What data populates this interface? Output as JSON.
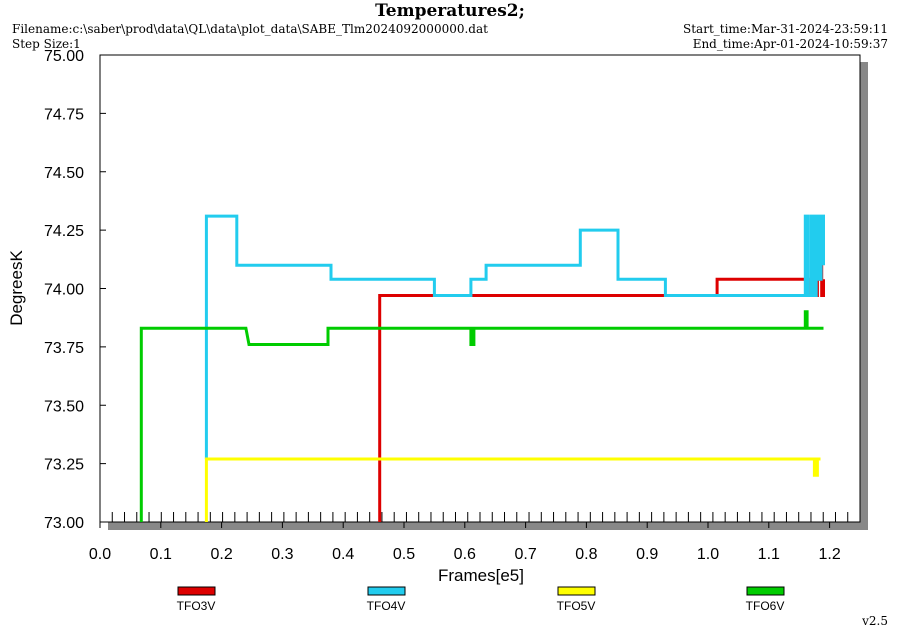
{
  "header": {
    "title": "Temperatures2;",
    "filename": "Filename:c:\\saber\\prod\\data\\QL\\data\\plot_data\\SABE_Tlm2024092000000.dat",
    "step_size": "Step Size:1",
    "start_time": "Start_time:Mar-31-2024-23:59:11",
    "end_time": "End_time:Apr-01-2024-10:59:37"
  },
  "version": "v2.5",
  "chart_data": {
    "type": "line",
    "xlabel": "Frames[e5]",
    "ylabel": "DegreesK",
    "xlim": [
      0.0,
      1.25
    ],
    "ylim": [
      73.0,
      75.0
    ],
    "xticks": [
      "0.0",
      "0.1",
      "0.2",
      "0.3",
      "0.4",
      "0.5",
      "0.6",
      "0.7",
      "0.8",
      "0.9",
      "1.0",
      "1.1",
      "1.2"
    ],
    "yticks": [
      "73.00",
      "73.25",
      "73.50",
      "73.75",
      "74.00",
      "74.25",
      "74.50",
      "74.75",
      "75.00"
    ],
    "legend_position": "bottom",
    "series": [
      {
        "name": "TFO3V",
        "color": "#dd0000",
        "points": [
          [
            0.46,
            73.0
          ],
          [
            0.46,
            73.97
          ],
          [
            1.015,
            73.97
          ],
          [
            1.015,
            74.04
          ],
          [
            1.165,
            74.04
          ],
          [
            1.165,
            73.97
          ],
          [
            1.18,
            73.97
          ],
          [
            1.18,
            74.04
          ],
          [
            1.185,
            74.04
          ],
          [
            1.185,
            74.11
          ],
          [
            1.187,
            74.11
          ],
          [
            1.187,
            73.97
          ],
          [
            1.19,
            73.97
          ],
          [
            1.19,
            74.04
          ]
        ]
      },
      {
        "name": "TFO4V",
        "color": "#22ccee",
        "points": [
          [
            0.175,
            73.27
          ],
          [
            0.175,
            74.31
          ],
          [
            0.225,
            74.31
          ],
          [
            0.225,
            74.1
          ],
          [
            0.38,
            74.1
          ],
          [
            0.38,
            74.04
          ],
          [
            0.55,
            74.04
          ],
          [
            0.55,
            73.97
          ],
          [
            0.61,
            73.97
          ],
          [
            0.61,
            74.04
          ],
          [
            0.635,
            74.04
          ],
          [
            0.635,
            74.1
          ],
          [
            0.79,
            74.1
          ],
          [
            0.79,
            74.25
          ],
          [
            0.852,
            74.25
          ],
          [
            0.852,
            74.04
          ],
          [
            0.93,
            74.04
          ],
          [
            0.93,
            73.97
          ],
          [
            1.16,
            73.97
          ],
          [
            1.16,
            74.31
          ],
          [
            1.165,
            74.31
          ],
          [
            1.165,
            73.97
          ],
          [
            1.17,
            73.97
          ],
          [
            1.17,
            74.31
          ],
          [
            1.174,
            74.31
          ],
          [
            1.174,
            73.97
          ],
          [
            1.178,
            73.97
          ],
          [
            1.178,
            74.31
          ],
          [
            1.182,
            74.31
          ],
          [
            1.182,
            74.04
          ],
          [
            1.186,
            74.04
          ],
          [
            1.186,
            74.31
          ],
          [
            1.19,
            74.31
          ],
          [
            1.19,
            74.1
          ]
        ]
      },
      {
        "name": "TFO5V",
        "color": "#ffff00",
        "points": [
          [
            0.175,
            73.0
          ],
          [
            0.175,
            73.27
          ],
          [
            1.175,
            73.27
          ],
          [
            1.175,
            73.2
          ],
          [
            1.18,
            73.2
          ],
          [
            1.18,
            73.27
          ],
          [
            1.185,
            73.27
          ]
        ]
      },
      {
        "name": "TFO6V",
        "color": "#00cc00",
        "points": [
          [
            0.068,
            73.0
          ],
          [
            0.068,
            73.83
          ],
          [
            0.24,
            73.83
          ],
          [
            0.245,
            73.76
          ],
          [
            0.375,
            73.76
          ],
          [
            0.375,
            73.83
          ],
          [
            0.61,
            73.83
          ],
          [
            0.61,
            73.76
          ],
          [
            0.615,
            73.76
          ],
          [
            0.615,
            73.83
          ],
          [
            1.16,
            73.83
          ],
          [
            1.16,
            73.9
          ],
          [
            1.163,
            73.9
          ],
          [
            1.163,
            73.83
          ],
          [
            1.19,
            73.83
          ]
        ]
      }
    ]
  }
}
